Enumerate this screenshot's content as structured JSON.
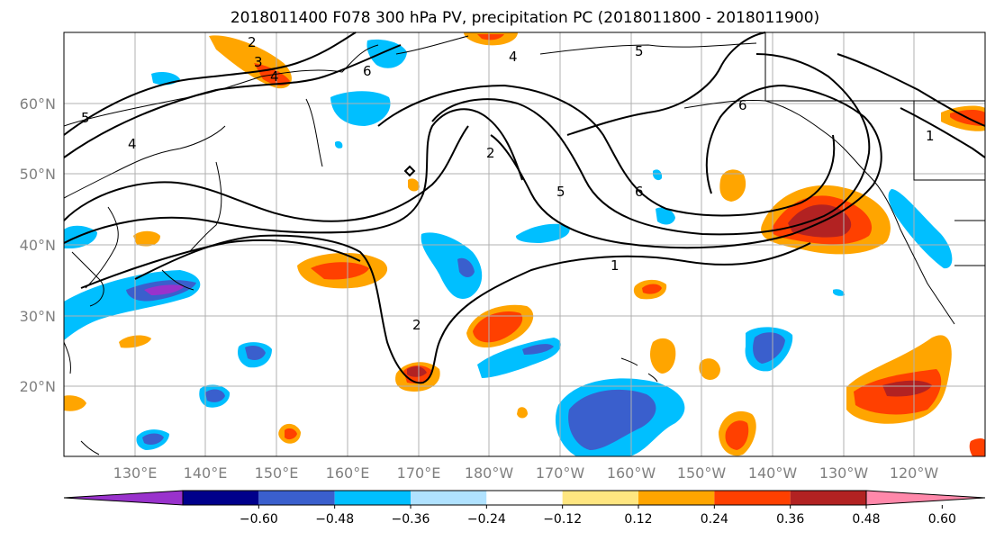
{
  "title": "2018011400 F078 300 hPa PV, precipitation PC (2018011800 - 2018011900)",
  "lat_labels": [
    "60°N",
    "50°N",
    "40°N",
    "30°N",
    "20°N"
  ],
  "lon_labels": [
    "130°E",
    "140°E",
    "150°E",
    "160°E",
    "170°E",
    "180°W",
    "170°W",
    "160°W",
    "150°W",
    "140°W",
    "130°W",
    "120°W"
  ],
  "colorbar": {
    "tick_labels": [
      "−0.60",
      "−0.48",
      "−0.36",
      "−0.24",
      "−0.12",
      "0.12",
      "0.24",
      "0.36",
      "0.48",
      "0.60"
    ],
    "colors": [
      "#9932CC",
      "#00008B",
      "#3A5FCD",
      "#00BFFF",
      "#B0E2FF",
      "#FFFFFF",
      "#FFE680",
      "#FFA500",
      "#FF4000",
      "#B22222",
      "#FF88AA"
    ]
  },
  "contour_labels": [
    "2",
    "3",
    "4",
    "5",
    "6",
    "4",
    "2",
    "5",
    "6",
    "1",
    "6",
    "1",
    "2",
    "5",
    "4"
  ],
  "colors": {
    "grid": "#b0b0b0",
    "coast": "#000000",
    "contour": "#000000",
    "tick_text": "#808080"
  }
}
